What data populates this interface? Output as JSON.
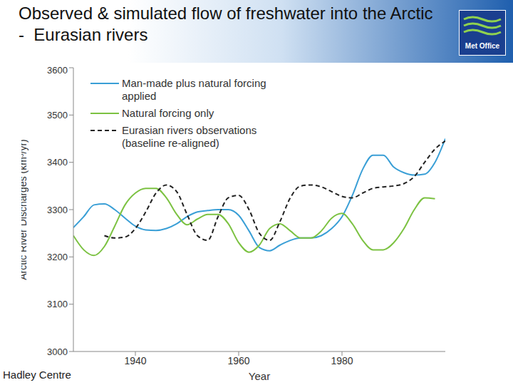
{
  "slide": {
    "logo": "Met Office",
    "footer": "Hadley Centre"
  },
  "chart_data": {
    "type": "line",
    "title": "Observed & simulated flow of freshwater into the Arctic -  Eurasian rivers",
    "x_label": "Year",
    "y_label": "Arctic River Discharges (km³/yr)",
    "x": [
      1928,
      1930,
      1932,
      1934,
      1936,
      1938,
      1940,
      1942,
      1944,
      1946,
      1948,
      1950,
      1952,
      1954,
      1956,
      1958,
      1960,
      1962,
      1964,
      1966,
      1968,
      1970,
      1972,
      1974,
      1976,
      1978,
      1980,
      1982,
      1984,
      1986,
      1988,
      1990,
      1992,
      1994,
      1996,
      1998,
      2000
    ],
    "xlim": [
      1928,
      2000
    ],
    "xticks": [
      1940,
      1960,
      1980
    ],
    "ylim": [
      3000,
      3600
    ],
    "yticks": [
      3000,
      3100,
      3200,
      3300,
      3400,
      3500,
      3600
    ],
    "grid": false,
    "legend": "upper left",
    "series": [
      {
        "name": "Man-made plus natural forcing applied",
        "color": "#3a9fd6",
        "line_style": "solid",
        "values": [
          3262,
          3285,
          3310,
          3312,
          3300,
          3282,
          3265,
          3257,
          3256,
          3260,
          3270,
          3285,
          3295,
          3298,
          3300,
          3300,
          3288,
          3255,
          3220,
          3213,
          3225,
          3235,
          3240,
          3240,
          3245,
          3260,
          3285,
          3330,
          3385,
          3415,
          3415,
          3390,
          3378,
          3373,
          3375,
          3400,
          3450
        ]
      },
      {
        "name": "Natural forcing only",
        "color": "#7cc242",
        "line_style": "solid",
        "values": [
          3245,
          3215,
          3203,
          3222,
          3265,
          3310,
          3335,
          3345,
          3345,
          3325,
          3290,
          3268,
          3280,
          3290,
          3290,
          3270,
          3230,
          3210,
          3225,
          3260,
          3270,
          3255,
          3240,
          3240,
          3255,
          3282,
          3292,
          3270,
          3235,
          3215,
          3215,
          3230,
          3260,
          3300,
          3325,
          3323,
          null
        ]
      },
      {
        "name": "Eurasian rivers observations (baseline re-aligned)",
        "color": "#222222",
        "line_style": "dashed",
        "values": [
          null,
          null,
          null,
          3245,
          3240,
          3242,
          3260,
          3295,
          3335,
          3352,
          3338,
          3290,
          3245,
          3235,
          3285,
          3325,
          3330,
          3300,
          3250,
          3235,
          3275,
          3325,
          3350,
          3352,
          3348,
          3338,
          3328,
          3325,
          3335,
          3345,
          3348,
          3350,
          3355,
          3370,
          3400,
          3428,
          3445
        ]
      }
    ]
  }
}
